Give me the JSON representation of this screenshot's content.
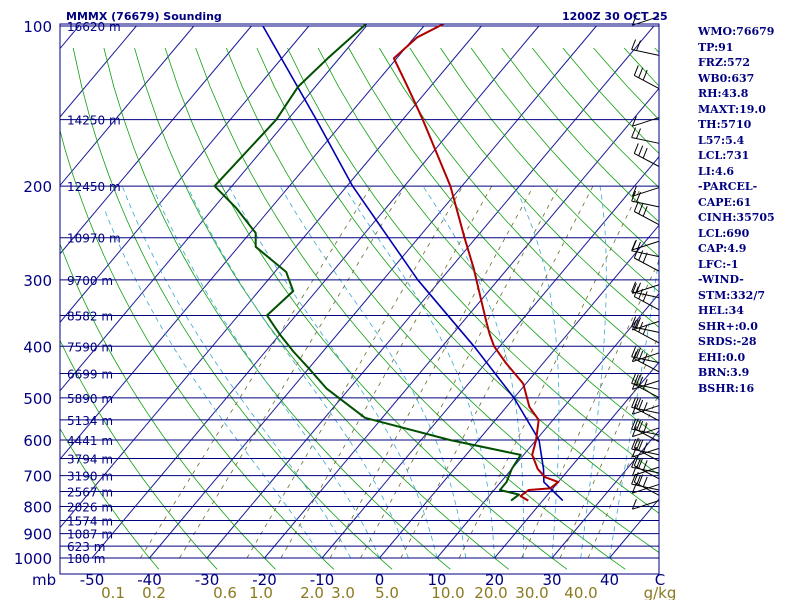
{
  "header": {
    "station": "MMMX (76679) Sounding",
    "time": "1200Z 30 OCT 25"
  },
  "chart_data": {
    "type": "skew-t",
    "pressure_axis": {
      "unit": "mb",
      "labels": [
        "100",
        "200",
        "300",
        "400",
        "500",
        "600",
        "700",
        "800",
        "900",
        "1000"
      ],
      "values": [
        100,
        200,
        300,
        400,
        500,
        600,
        700,
        800,
        900,
        1000
      ],
      "log_scale": true
    },
    "temperature_axis": {
      "labels": [
        "-50",
        "-40",
        "-30",
        "-20",
        "-10",
        "0",
        "10",
        "20",
        "30",
        "40",
        "C"
      ],
      "values": [
        -50,
        -40,
        -30,
        -20,
        -10,
        0,
        10,
        20,
        30,
        40
      ]
    },
    "mixing_ratio_labels": [
      "0.1",
      "0.2",
      "0.6",
      "1.0",
      "2.0",
      "3.0",
      "5.0",
      "10.0",
      "20.0",
      "30.0",
      "40.0",
      "g/kg"
    ],
    "mixing_ratio_values": [
      0.1,
      0.2,
      0.6,
      1.0,
      2.0,
      3.0,
      5.0,
      10.0,
      20.0,
      30.0,
      40.0
    ],
    "height_levels": [
      {
        "p": 100,
        "label": "16620 m"
      },
      {
        "p": 150,
        "label": "14250 m"
      },
      {
        "p": 200,
        "label": "12450 m"
      },
      {
        "p": 250,
        "label": "10970 m"
      },
      {
        "p": 300,
        "label": "9700 m"
      },
      {
        "p": 350,
        "label": "8582 m"
      },
      {
        "p": 400,
        "label": "7590 m"
      },
      {
        "p": 450,
        "label": "6699 m"
      },
      {
        "p": 500,
        "label": "5890 m"
      },
      {
        "p": 550,
        "label": "5134 m"
      },
      {
        "p": 600,
        "label": "4441 m"
      },
      {
        "p": 650,
        "label": "3794 m"
      },
      {
        "p": 700,
        "label": "3190 m"
      },
      {
        "p": 750,
        "label": "2567 m"
      },
      {
        "p": 800,
        "label": "2026 m"
      },
      {
        "p": 850,
        "label": "1574 m"
      },
      {
        "p": 900,
        "label": "1087 m"
      },
      {
        "p": 950,
        "label": "623 m"
      },
      {
        "p": 1000,
        "label": "180 m"
      }
    ],
    "temperature_profile": [
      {
        "p": 780,
        "t": 17.5
      },
      {
        "p": 765,
        "t": 15.5
      },
      {
        "p": 745,
        "t": 16.0
      },
      {
        "p": 740,
        "t": 19.5
      },
      {
        "p": 720,
        "t": 20.0
      },
      {
        "p": 705,
        "t": 17.0
      },
      {
        "p": 680,
        "t": 14.5
      },
      {
        "p": 640,
        "t": 11.5
      },
      {
        "p": 600,
        "t": 10.0
      },
      {
        "p": 550,
        "t": 7.5
      },
      {
        "p": 520,
        "t": 4.0
      },
      {
        "p": 470,
        "t": -0.5
      },
      {
        "p": 430,
        "t": -6.5
      },
      {
        "p": 400,
        "t": -11.0
      },
      {
        "p": 380,
        "t": -13.5
      },
      {
        "p": 355,
        "t": -16.5
      },
      {
        "p": 320,
        "t": -21.0
      },
      {
        "p": 285,
        "t": -26.0
      },
      {
        "p": 250,
        "t": -32.0
      },
      {
        "p": 200,
        "t": -42.0
      },
      {
        "p": 150,
        "t": -56.5
      },
      {
        "p": 130,
        "t": -64.0
      },
      {
        "p": 115,
        "t": -70.5
      },
      {
        "p": 105,
        "t": -69.5
      },
      {
        "p": 96,
        "t": -65.5
      }
    ],
    "dewpoint_profile": [
      {
        "p": 780,
        "t": 14.5
      },
      {
        "p": 760,
        "t": 15.0
      },
      {
        "p": 745,
        "t": 11.0
      },
      {
        "p": 720,
        "t": 11.0
      },
      {
        "p": 680,
        "t": 10.0
      },
      {
        "p": 640,
        "t": 9.5
      },
      {
        "p": 600,
        "t": -5.0
      },
      {
        "p": 545,
        "t": -23.0
      },
      {
        "p": 480,
        "t": -34.0
      },
      {
        "p": 440,
        "t": -40.0
      },
      {
        "p": 410,
        "t": -45.0
      },
      {
        "p": 380,
        "t": -50.0
      },
      {
        "p": 350,
        "t": -55.0
      },
      {
        "p": 315,
        "t": -54.0
      },
      {
        "p": 290,
        "t": -58.0
      },
      {
        "p": 260,
        "t": -67.0
      },
      {
        "p": 245,
        "t": -69.0
      },
      {
        "p": 220,
        "t": -76.0
      },
      {
        "p": 200,
        "t": -83.0
      },
      {
        "p": 150,
        "t": -82.0
      },
      {
        "p": 130,
        "t": -83.0
      },
      {
        "p": 115,
        "t": -82.0
      },
      {
        "p": 96,
        "t": -80.0
      }
    ],
    "parcel_profile": [
      {
        "p": 780,
        "t": 23.5
      },
      {
        "p": 720,
        "t": 17.5
      },
      {
        "p": 680,
        "t": 15.5
      },
      {
        "p": 600,
        "t": 10.5
      },
      {
        "p": 500,
        "t": 0.0
      },
      {
        "p": 400,
        "t": -14.5
      },
      {
        "p": 300,
        "t": -34.0
      },
      {
        "p": 200,
        "t": -59.0
      },
      {
        "p": 150,
        "t": -75.0
      },
      {
        "p": 100,
        "t": -98.0
      }
    ],
    "wind_barbs_count": 40,
    "grid": true
  },
  "indices": [
    "WMO:76679",
    "TP:91",
    "FRZ:572",
    "WB0:637",
    "RH:43.8",
    "MAXT:19.0",
    "TH:5710",
    "L57:5.4",
    "LCL:731",
    "LI:4.6",
    "-PARCEL-",
    "CAPE:61",
    "CINH:35705",
    "LCL:690",
    "CAP:4.9",
    "LFC:-1",
    "-WIND-",
    "STM:332/7",
    "HEL:34",
    "SHR+:0.0",
    "SRDS:-28",
    "EHI:0.0",
    "BRN:3.9",
    "BSHR:16"
  ],
  "colors": {
    "frame": "#000080",
    "isotherm": "#1c1c9a",
    "dry_adiabat": "#11a011",
    "moist_adiabat": "#3aa8d0",
    "mixing_ratio": "#6b6b2e",
    "temperature": "#b00000",
    "dewpoint": "#005000",
    "parcel": "#0000b0",
    "mixing_label": "#8a7a1e"
  }
}
